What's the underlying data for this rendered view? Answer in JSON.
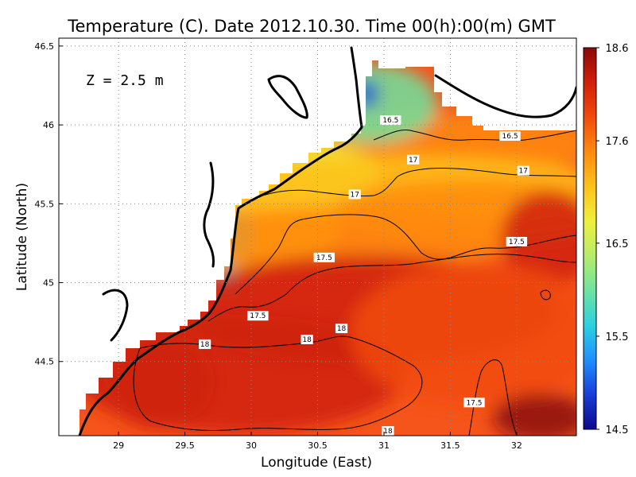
{
  "chart_data": {
    "type": "heatmap",
    "title": "Temperature (C). Date 2012.10.30. Time 00(h):00(m) GMT",
    "xlabel": "Longitude (East)",
    "ylabel": "Latitude (North)",
    "annotation": "Z = 2.5 m",
    "xlim": [
      28.55,
      32.45
    ],
    "ylim": [
      44.03,
      46.55
    ],
    "x_ticks": [
      "29",
      "29.5",
      "30",
      "30.5",
      "31",
      "31.5",
      "32"
    ],
    "y_ticks": [
      "44.5",
      "45",
      "45.5",
      "46",
      "46.5"
    ],
    "grid": true,
    "colorbar": {
      "min": 14.5,
      "max": 18.6,
      "ticks": [
        "14.5",
        "15.5",
        "16.5",
        "17.6",
        "18.6"
      ],
      "colors": [
        "#0a0a8c",
        "#1a3cd8",
        "#1e90ff",
        "#29d2e0",
        "#6fe3a0",
        "#b7ec6a",
        "#eef03c",
        "#ffc21a",
        "#ff8a0e",
        "#f24a0c",
        "#d0200a",
        "#8c0808"
      ]
    },
    "contour_labels": [
      {
        "text": "16.5",
        "lon": 31.05,
        "lat": 46.03
      },
      {
        "text": "16.5",
        "lon": 31.95,
        "lat": 45.93
      },
      {
        "text": "17",
        "lon": 31.22,
        "lat": 45.78
      },
      {
        "text": "17",
        "lon": 32.05,
        "lat": 45.71
      },
      {
        "text": "17",
        "lon": 30.78,
        "lat": 45.56
      },
      {
        "text": "17.5",
        "lon": 32.0,
        "lat": 45.26
      },
      {
        "text": "17.5",
        "lon": 30.55,
        "lat": 45.16
      },
      {
        "text": "17.5",
        "lon": 30.05,
        "lat": 44.79
      },
      {
        "text": "18",
        "lon": 30.68,
        "lat": 44.71
      },
      {
        "text": "18",
        "lon": 29.65,
        "lat": 44.61
      },
      {
        "text": "18",
        "lon": 30.42,
        "lat": 44.64
      },
      {
        "text": "17.5",
        "lon": 31.68,
        "lat": 44.24
      },
      {
        "text": "18",
        "lon": 31.03,
        "lat": 44.06
      }
    ]
  }
}
